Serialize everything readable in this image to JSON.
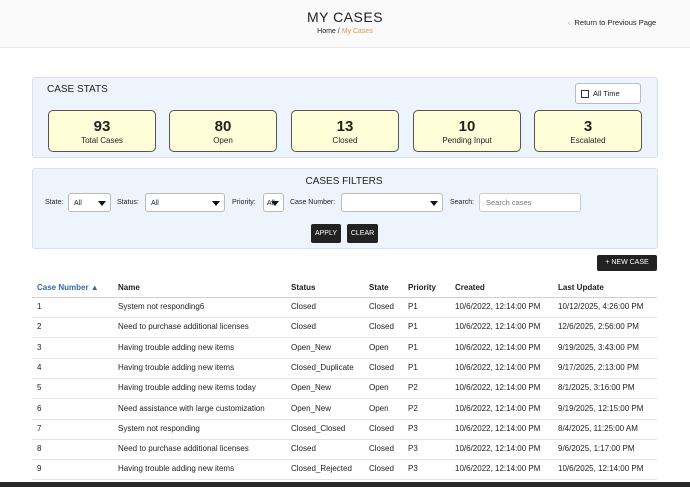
{
  "header": {
    "title": "MY CASES",
    "breadcrumb": [
      "Home",
      "/",
      "My Cases"
    ],
    "back_icon": "‹",
    "back_link": "Return to Previous Page"
  },
  "stats": {
    "title": "CASE STATS",
    "range": "All Time",
    "cards": [
      {
        "value": 93,
        "label": "Total Cases"
      },
      {
        "value": 80,
        "label": "Open"
      },
      {
        "value": 13,
        "label": "Closed"
      },
      {
        "value": 10,
        "label": "Pending Input"
      },
      {
        "value": 3,
        "label": "Escalated"
      }
    ]
  },
  "filters": {
    "title": "CASES FILTERS",
    "state": {
      "label": "State:",
      "value": "All"
    },
    "status": {
      "label": "Status:",
      "value": "All"
    },
    "priority": {
      "label": "Priority:",
      "value": "All"
    },
    "case_number": {
      "label": "Case Number:"
    },
    "search": {
      "label": "Search:",
      "placeholder": "Search cases"
    },
    "buttons": [
      "APPLY",
      "CLEAR"
    ]
  },
  "new_case_button": "+ NEW CASE",
  "table": {
    "columns": [
      "Case Number ▲",
      "Name",
      "Status",
      "State",
      "Priority",
      "Created",
      "Last Update"
    ],
    "rows": [
      [
        1,
        "System not responding6",
        "Closed",
        "Closed",
        "P1",
        "10/6/2022, 12:14:00 PM",
        "10/12/2025, 4:26:00 PM"
      ],
      [
        2,
        "Need to purchase additional licenses",
        "Closed",
        "Closed",
        "P1",
        "10/6/2022, 12:14:00 PM",
        "12/6/2025, 2:56:00 PM"
      ],
      [
        3,
        "Having trouble adding new items",
        "Open_New",
        "Open",
        "P1",
        "10/6/2022, 12:14:00 PM",
        "9/19/2025, 3:43:00 PM"
      ],
      [
        4,
        "Having trouble adding new items",
        "Closed_Duplicate",
        "Closed",
        "P1",
        "10/6/2022, 12:14:00 PM",
        "9/17/2025, 2:13:00 PM"
      ],
      [
        5,
        "Having trouble adding new items today",
        "Open_New",
        "Open",
        "P2",
        "10/6/2022, 12:14:00 PM",
        "8/1/2025, 3:16:00 PM"
      ],
      [
        6,
        "Need assistance with large customization",
        "Open_New",
        "Open",
        "P2",
        "10/6/2022, 12:14:00 PM",
        "9/19/2025, 12:15:00 PM"
      ],
      [
        7,
        "System not responding",
        "Closed_Closed",
        "Closed",
        "P3",
        "10/6/2022, 12:14:00 PM",
        "8/4/2025, 11:25:00 AM"
      ],
      [
        8,
        "Need to purchase additional licenses",
        "Closed",
        "Closed",
        "P3",
        "10/6/2022, 12:14:00 PM",
        "9/6/2025, 1:17:00 PM"
      ],
      [
        9,
        "Having trouble adding new items",
        "Closed_Rejected",
        "Closed",
        "P3",
        "10/6/2022, 12:14:00 PM",
        "10/6/2025, 12:14:00 PM"
      ]
    ]
  }
}
